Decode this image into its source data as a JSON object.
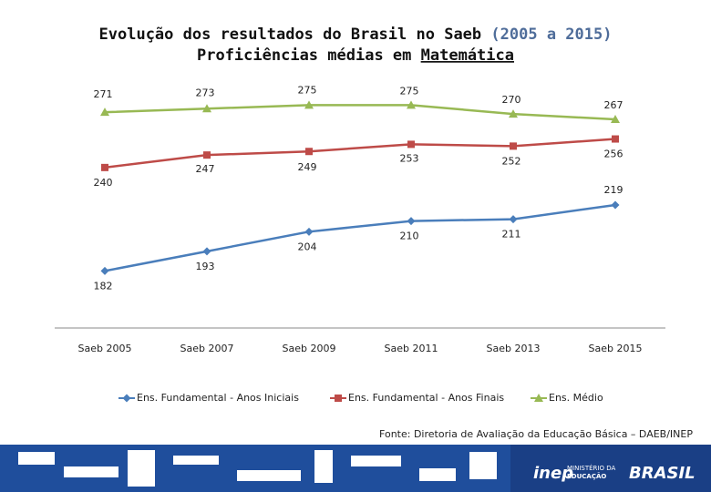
{
  "chart_data": {
    "type": "line",
    "title_parts": [
      "Evolução dos resultados do Brasil no Saeb",
      "(2005 a 2015)"
    ],
    "subtitle_parts": [
      "Proficiências médias em",
      "Matemática"
    ],
    "categories": [
      "Saeb 2005",
      "Saeb 2007",
      "Saeb 2009",
      "Saeb 2011",
      "Saeb 2013",
      "Saeb 2015"
    ],
    "ylim": [
      150,
      290
    ],
    "legend": "bottom",
    "series": [
      {
        "name": "Ens. Fundamental - Anos Iniciais",
        "color": "#4a7ebb",
        "marker": "diamond",
        "values": [
          182,
          193,
          204,
          210,
          211,
          219
        ]
      },
      {
        "name": "Ens. Fundamental - Anos Finais",
        "color": "#be4b48",
        "marker": "square",
        "values": [
          240,
          247,
          249,
          253,
          252,
          256
        ]
      },
      {
        "name": "Ens. Médio",
        "color": "#98b954",
        "marker": "triangle",
        "values": [
          271,
          273,
          275,
          275,
          270,
          267
        ]
      }
    ],
    "source": "Fonte: Diretoria de Avaliação da Educação Básica – DAEB/INEP"
  },
  "footer": {
    "inep": "inep",
    "ministry": [
      "MINISTÉRIO DA",
      "EDUCAÇÃO"
    ],
    "country": "BRASIL"
  }
}
